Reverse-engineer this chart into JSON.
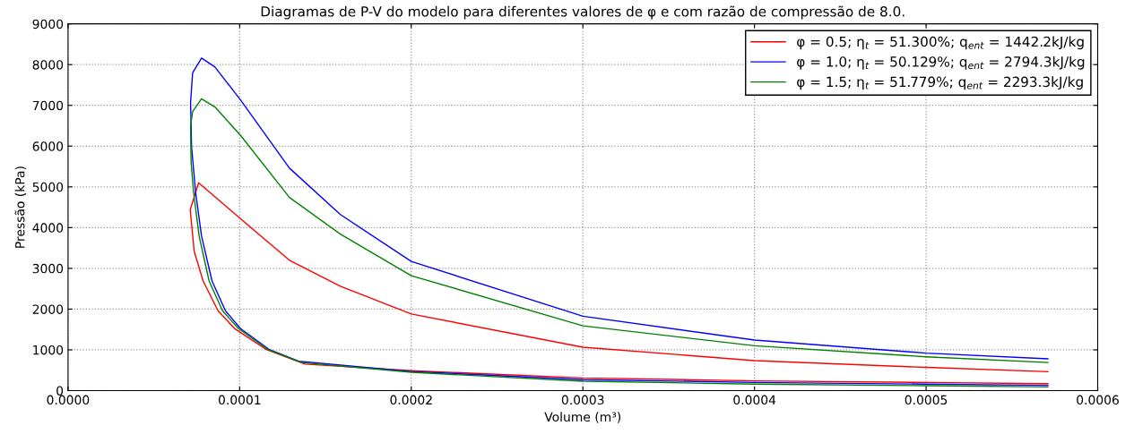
{
  "chart_data": {
    "type": "line",
    "title": "Diagramas de P-V do modelo para diferentes valores de φ e com razão de compressão de 8.0.",
    "xlabel": "Volume (m³)",
    "ylabel": "Pressão (kPa)",
    "xlim": [
      0,
      0.0006
    ],
    "ylim": [
      0,
      9000
    ],
    "xticks": [
      {
        "value": 0,
        "label": "0.0000"
      },
      {
        "value": 0.0001,
        "label": "0.0001"
      },
      {
        "value": 0.0002,
        "label": "0.0002"
      },
      {
        "value": 0.0003,
        "label": "0.0003"
      },
      {
        "value": 0.0004,
        "label": "0.0004"
      },
      {
        "value": 0.0005,
        "label": "0.0005"
      },
      {
        "value": 0.0006,
        "label": "0.0006"
      }
    ],
    "yticks": [
      0,
      1000,
      2000,
      3000,
      4000,
      5000,
      6000,
      7000,
      8000,
      9000
    ],
    "grid": true,
    "legend": "top right",
    "line_style": "solid",
    "marker": "none",
    "series": [
      {
        "name": "φ = 0.5; η$_{t}$ = 51.300%; q$_{ent}$ = 1442.2kJ/kg",
        "color": "#ff0000",
        "x": [
          0.000571,
          0.0005,
          0.0004,
          0.0003,
          0.0002,
          0.000138,
          0.0001152,
          9.7e-05,
          8.74e-05,
          7.87e-05,
          7.35e-05,
          7.12e-05,
          7.61e-05,
          0.0001004,
          0.000129,
          0.0001587,
          0.0002,
          0.0003,
          0.0004,
          0.0005,
          0.000571
        ],
        "values": [
          170,
          200,
          240,
          310,
          490,
          650,
          1015,
          1525,
          1960,
          2690,
          3420,
          4440,
          5100,
          4220,
          3200,
          2560,
          1880,
          1065,
          737,
          570,
          465
        ]
      },
      {
        "name": "φ = 1.0; η$_{t}$ = 50.129%; q$_{ent}$ = 2794.3kJ/kg",
        "color": "#0000ff",
        "x": [
          0.000571,
          0.0005,
          0.0004,
          0.0003,
          0.0002,
          0.0001344,
          0.000117,
          0.0001004,
          9.17e-05,
          8.39e-05,
          7.78e-05,
          7.43e-05,
          7.2e-05,
          7.14e-05,
          7.26e-05,
          7.78e-05,
          8.56e-05,
          0.0001004,
          0.000129,
          0.0001587,
          0.0002,
          0.0003,
          0.0004,
          0.0005,
          0.000571
        ],
        "values": [
          130,
          160,
          200,
          270,
          470,
          720,
          1015,
          1525,
          1960,
          2690,
          3790,
          4880,
          5970,
          7070,
          7800,
          8160,
          7940,
          7140,
          5460,
          4320,
          3170,
          1825,
          1240,
          920,
          780
        ]
      },
      {
        "name": "φ = 1.5; η$_{t}$ = 51.779%; q$_{ent}$ = 2293.3kJ/kg",
        "color": "#008000",
        "x": [
          0.000571,
          0.0005,
          0.0004,
          0.0003,
          0.0002,
          0.0001361,
          0.0001161,
          9.92e-05,
          9e-05,
          8.22e-05,
          7.64e-05,
          7.31e-05,
          7.17e-05,
          7.14e-05,
          7.26e-05,
          7.78e-05,
          8.56e-05,
          0.0001004,
          0.000129,
          0.0001587,
          0.0002,
          0.0003,
          0.0004,
          0.0005,
          0.000571
        ],
        "values": [
          90,
          120,
          160,
          230,
          450,
          690,
          1015,
          1525,
          1960,
          2690,
          3790,
          4880,
          5610,
          6490,
          6850,
          7160,
          6960,
          6270,
          4740,
          3840,
          2820,
          1590,
          1100,
          830,
          690
        ]
      }
    ]
  }
}
